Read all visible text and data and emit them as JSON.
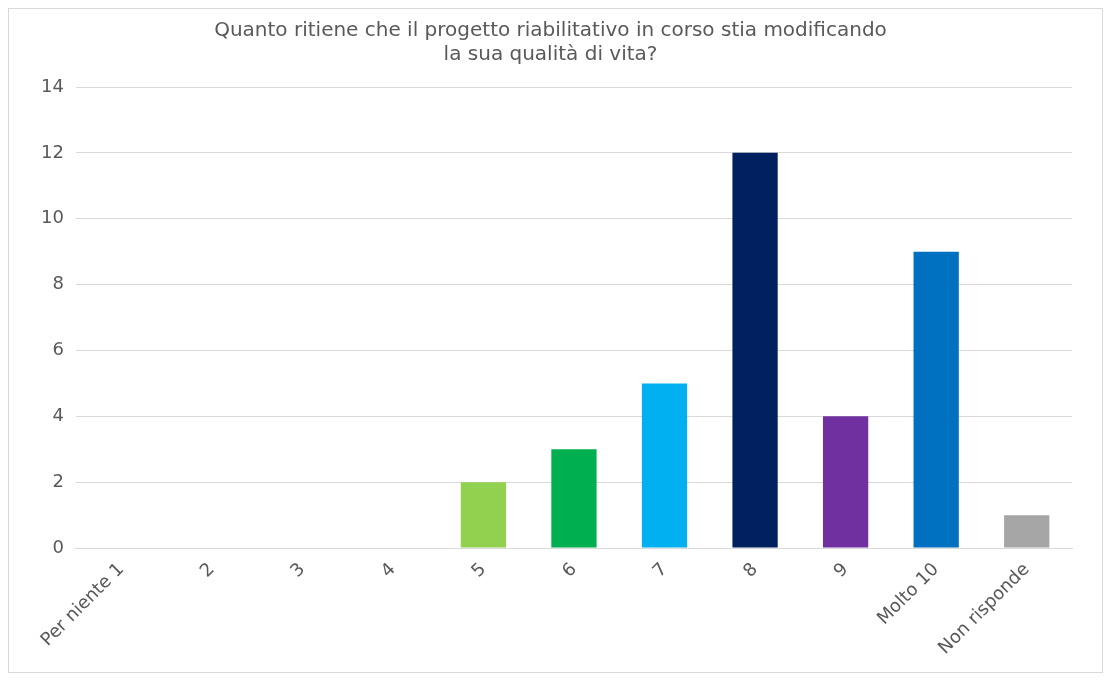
{
  "chart_data": {
    "type": "bar",
    "title": "Quanto ritiene che il progetto riabilitativo in corso stia modificando la sua qualità di vita?",
    "categories": [
      "Per niente 1",
      "2",
      "3",
      "4",
      "5",
      "6",
      "7",
      "8",
      "9",
      "Molto 10",
      "Non risponde"
    ],
    "values": [
      0,
      0,
      0,
      0,
      2,
      3,
      5,
      12,
      4,
      9,
      1
    ],
    "colors": [
      "#a6a6a6",
      "#a6a6a6",
      "#a6a6a6",
      "#a6a6a6",
      "#92d050",
      "#00b050",
      "#00b0f0",
      "#002060",
      "#7030a0",
      "#0070c0",
      "#a6a6a6"
    ],
    "ylim": [
      0,
      14
    ],
    "yticks": [
      0,
      2,
      4,
      6,
      8,
      10,
      12,
      14
    ],
    "grid": "y",
    "legend": false
  }
}
